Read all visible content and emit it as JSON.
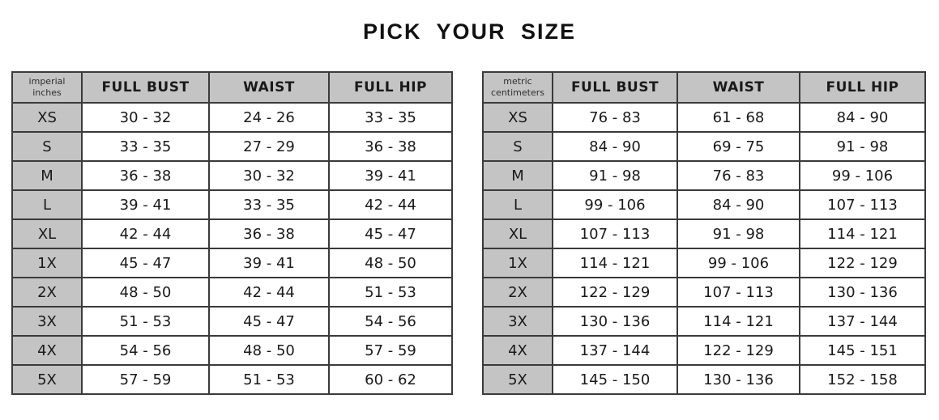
{
  "title": "PICK YOUR SIZE",
  "colors": {
    "header_bg": "#c4c4c4",
    "cell_bg": "#ffffff",
    "border": "#3a3a3a",
    "text": "#1a1a1a",
    "page_bg": "#ffffff"
  },
  "chart_data": [
    {
      "type": "table",
      "name": "imperial-size-table",
      "unit_line1": "imperial",
      "unit_line2": "inches",
      "columns": [
        "FULL BUST",
        "WAIST",
        "FULL HIP"
      ],
      "rows": [
        {
          "size": "XS",
          "full_bust": "30 - 32",
          "waist": "24 - 26",
          "full_hip": "33 - 35"
        },
        {
          "size": "S",
          "full_bust": "33 - 35",
          "waist": "27 - 29",
          "full_hip": "36 - 38"
        },
        {
          "size": "M",
          "full_bust": "36 - 38",
          "waist": "30 - 32",
          "full_hip": "39 - 41"
        },
        {
          "size": "L",
          "full_bust": "39 - 41",
          "waist": "33 - 35",
          "full_hip": "42 - 44"
        },
        {
          "size": "XL",
          "full_bust": "42 - 44",
          "waist": "36 - 38",
          "full_hip": "45 - 47"
        },
        {
          "size": "1X",
          "full_bust": "45 - 47",
          "waist": "39 - 41",
          "full_hip": "48 - 50"
        },
        {
          "size": "2X",
          "full_bust": "48 - 50",
          "waist": "42 - 44",
          "full_hip": "51 - 53"
        },
        {
          "size": "3X",
          "full_bust": "51 - 53",
          "waist": "45 - 47",
          "full_hip": "54 - 56"
        },
        {
          "size": "4X",
          "full_bust": "54 - 56",
          "waist": "48 - 50",
          "full_hip": "57 - 59"
        },
        {
          "size": "5X",
          "full_bust": "57 - 59",
          "waist": "51 - 53",
          "full_hip": "60 - 62"
        }
      ]
    },
    {
      "type": "table",
      "name": "metric-size-table",
      "unit_line1": "metric",
      "unit_line2": "centimeters",
      "columns": [
        "FULL BUST",
        "WAIST",
        "FULL HIP"
      ],
      "rows": [
        {
          "size": "XS",
          "full_bust": "76 - 83",
          "waist": "61 - 68",
          "full_hip": "84 - 90"
        },
        {
          "size": "S",
          "full_bust": "84 - 90",
          "waist": "69 - 75",
          "full_hip": "91 - 98"
        },
        {
          "size": "M",
          "full_bust": "91 - 98",
          "waist": "76 - 83",
          "full_hip": "99 - 106"
        },
        {
          "size": "L",
          "full_bust": "99 - 106",
          "waist": "84 - 90",
          "full_hip": "107 - 113"
        },
        {
          "size": "XL",
          "full_bust": "107 - 113",
          "waist": "91 - 98",
          "full_hip": "114 - 121"
        },
        {
          "size": "1X",
          "full_bust": "114 - 121",
          "waist": "99 - 106",
          "full_hip": "122 - 129"
        },
        {
          "size": "2X",
          "full_bust": "122 - 129",
          "waist": "107 - 113",
          "full_hip": "130 - 136"
        },
        {
          "size": "3X",
          "full_bust": "130 - 136",
          "waist": "114 - 121",
          "full_hip": "137 - 144"
        },
        {
          "size": "4X",
          "full_bust": "137 - 144",
          "waist": "122 - 129",
          "full_hip": "145 - 151"
        },
        {
          "size": "5X",
          "full_bust": "145 - 150",
          "waist": "130 - 136",
          "full_hip": "152 - 158"
        }
      ]
    }
  ]
}
